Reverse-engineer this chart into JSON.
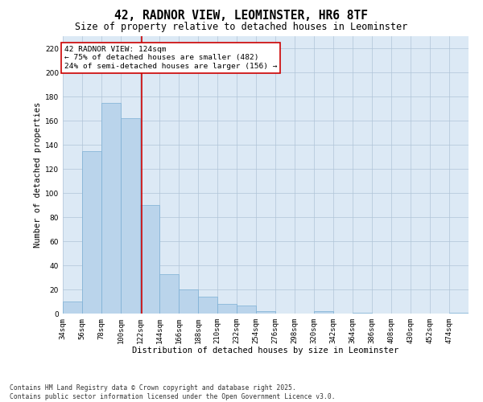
{
  "title": "42, RADNOR VIEW, LEOMINSTER, HR6 8TF",
  "subtitle": "Size of property relative to detached houses in Leominster",
  "xlabel": "Distribution of detached houses by size in Leominster",
  "ylabel": "Number of detached properties",
  "bar_color": "#bad4eb",
  "bar_edge_color": "#7bafd4",
  "vline_color": "#cc0000",
  "vline_x": 124,
  "annotation_text": "42 RADNOR VIEW: 124sqm\n← 75% of detached houses are smaller (482)\n24% of semi-detached houses are larger (156) →",
  "annotation_box_color": "#cc0000",
  "categories": [
    "34sqm",
    "56sqm",
    "78sqm",
    "100sqm",
    "122sqm",
    "144sqm",
    "166sqm",
    "188sqm",
    "210sqm",
    "232sqm",
    "254sqm",
    "276sqm",
    "298sqm",
    "320sqm",
    "342sqm",
    "364sqm",
    "386sqm",
    "408sqm",
    "430sqm",
    "452sqm",
    "474sqm"
  ],
  "bin_starts": [
    34,
    56,
    78,
    100,
    122,
    144,
    166,
    188,
    210,
    232,
    254,
    276,
    298,
    320,
    342,
    364,
    386,
    408,
    430,
    452,
    474
  ],
  "bin_width": 22,
  "values": [
    10,
    135,
    175,
    162,
    90,
    33,
    20,
    14,
    8,
    7,
    2,
    0,
    0,
    2,
    0,
    1,
    0,
    0,
    0,
    0,
    1
  ],
  "ylim": [
    0,
    230
  ],
  "yticks": [
    0,
    20,
    40,
    60,
    80,
    100,
    120,
    140,
    160,
    180,
    200,
    220
  ],
  "xlim": [
    34,
    496
  ],
  "background_color": "#ffffff",
  "plot_bg_color": "#dce9f5",
  "grid_color": "#b0c4d8",
  "footer_text": "Contains HM Land Registry data © Crown copyright and database right 2025.\nContains public sector information licensed under the Open Government Licence v3.0.",
  "title_fontsize": 10.5,
  "subtitle_fontsize": 8.5,
  "axis_label_fontsize": 7.5,
  "tick_fontsize": 6.5,
  "annotation_fontsize": 6.8,
  "footer_fontsize": 5.8
}
